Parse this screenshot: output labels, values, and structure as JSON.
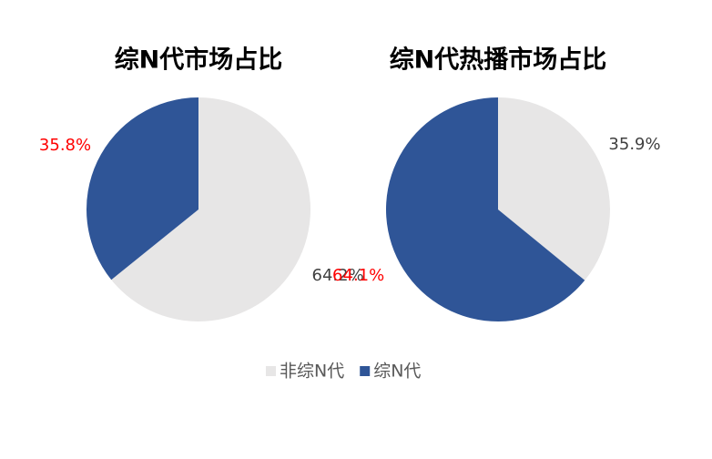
{
  "chart_data": [
    {
      "type": "pie",
      "title": "综N代市场占比",
      "categories": [
        "非综N代",
        "综N代"
      ],
      "values": [
        64.2,
        35.8
      ],
      "value_labels": [
        "64.2%",
        "35.8%"
      ],
      "colors": [
        "#e7e6e6",
        "#2f5597"
      ],
      "label_colors": [
        "#404040",
        "#ff0000"
      ]
    },
    {
      "type": "pie",
      "title": "综N代热播市场占比",
      "categories": [
        "非综N代",
        "综N代"
      ],
      "values": [
        35.9,
        64.1
      ],
      "value_labels": [
        "35.9%",
        "64.1%"
      ],
      "colors": [
        "#e7e6e6",
        "#2f5597"
      ],
      "label_colors": [
        "#404040",
        "#ff0000"
      ]
    }
  ]
}
